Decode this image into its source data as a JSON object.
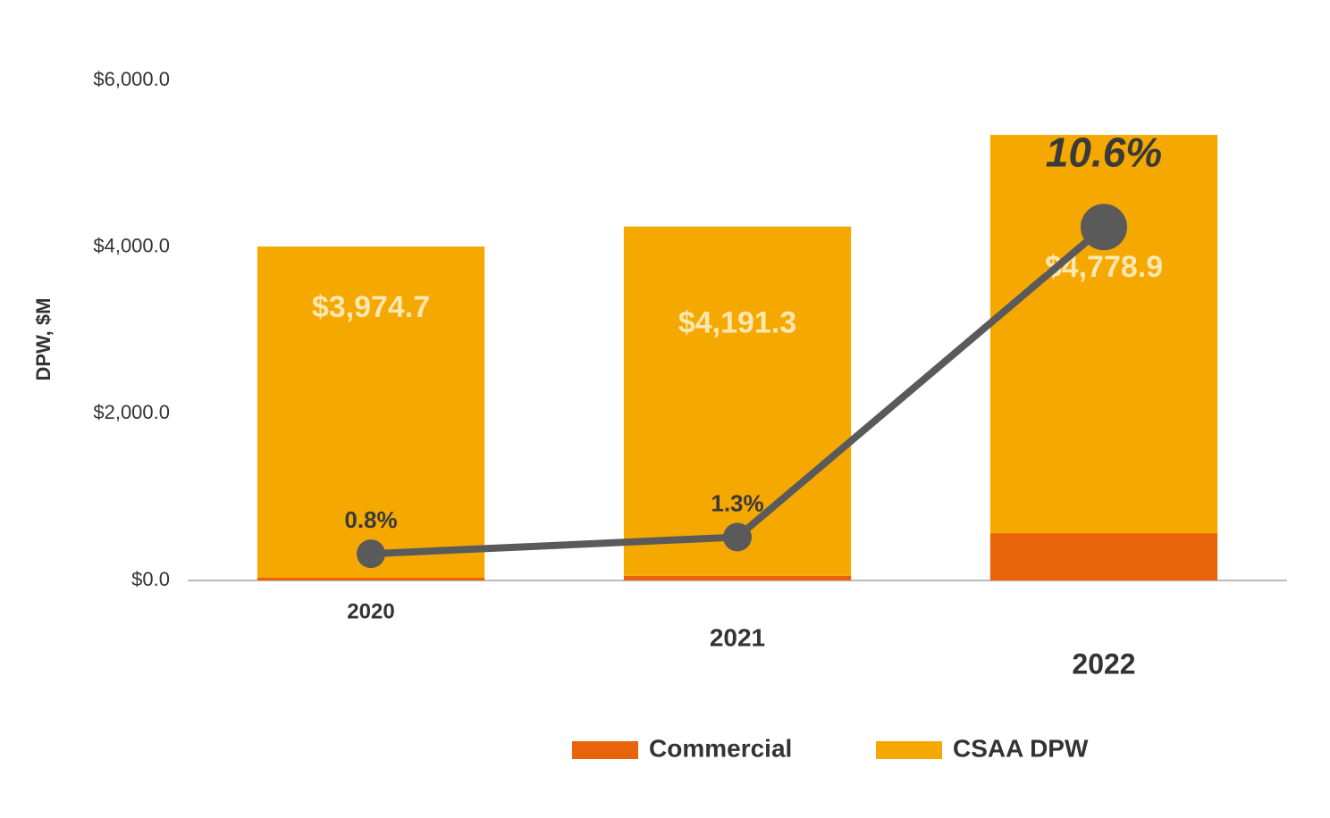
{
  "chart_data": {
    "type": "bar-line",
    "ylabel": "DPW, $M",
    "categories": [
      "2020",
      "2021",
      "2022"
    ],
    "series": [
      {
        "name": "Commercial",
        "color": "#e8630a",
        "values": [
          32,
          55,
          567
        ]
      },
      {
        "name": "CSAA DPW",
        "color": "#f5a800",
        "values": [
          3974.7,
          4191.3,
          4778.9
        ],
        "value_labels": [
          "$3,974.7",
          "$4,191.3",
          "$4,778.9"
        ]
      }
    ],
    "line": {
      "color": "#5a5a5a",
      "axis": "y2",
      "values": [
        0.8,
        1.3,
        10.6
      ],
      "value_labels": [
        "0.8%",
        "1.3%",
        "10.6%"
      ]
    },
    "ylim": [
      0,
      6000
    ],
    "yticks": [
      {
        "value": 0,
        "label": "$0.0"
      },
      {
        "value": 2000,
        "label": "$2,000.0"
      },
      {
        "value": 4000,
        "label": "$4,000.0"
      },
      {
        "value": 6000,
        "label": "$6,000.0"
      }
    ],
    "y2lim": [
      0,
      15
    ],
    "legend": "bottom"
  }
}
